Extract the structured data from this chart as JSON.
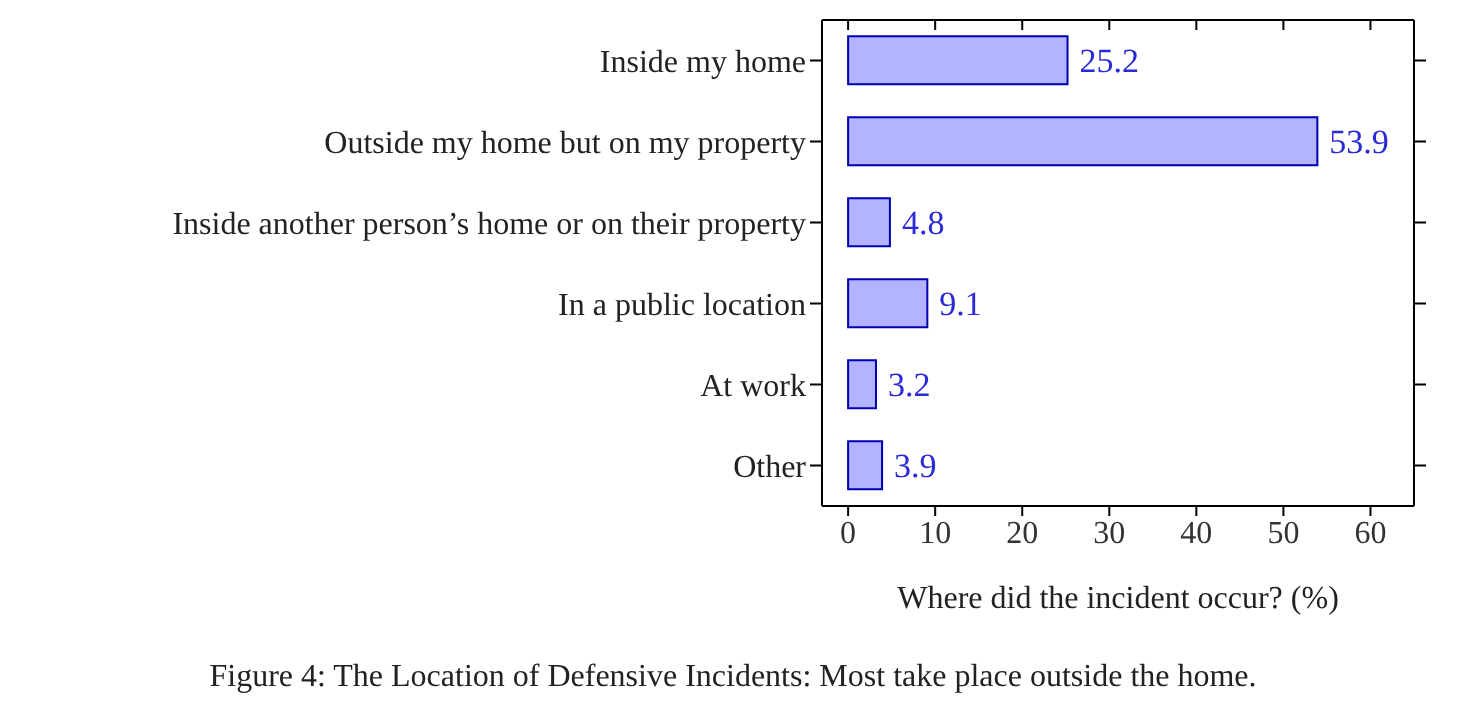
{
  "chart_data": {
    "type": "bar",
    "orientation": "horizontal",
    "categories": [
      "Inside my home",
      "Outside my home but on my property",
      "Inside another person’s home or on their property",
      "In a public location",
      "At work",
      "Other"
    ],
    "values": [
      25.2,
      53.9,
      4.8,
      9.1,
      3.2,
      3.9
    ],
    "color": "#b3b3ff",
    "data_labels": true,
    "xlabel": "Where did the incident occur? (%)",
    "xlim": [
      -3,
      65
    ],
    "xticks": [
      0,
      10,
      20,
      30,
      40,
      50,
      60
    ],
    "grid": false,
    "annotations": [
      "Figure 4: The Location of Defensive Incidents: Most take place outside the home."
    ]
  }
}
